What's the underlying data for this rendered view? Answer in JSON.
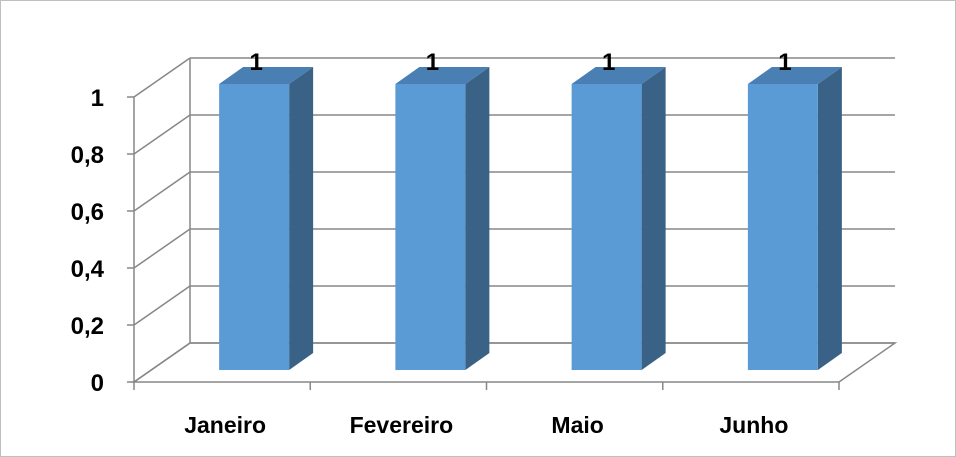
{
  "chart_data": {
    "type": "bar",
    "categories": [
      "Janeiro",
      "Fevereiro",
      "Maio",
      "Junho"
    ],
    "values": [
      1,
      1,
      1,
      1
    ],
    "data_labels": [
      "1",
      "1",
      "1",
      "1"
    ],
    "ylim": [
      0,
      1
    ],
    "y_ticks": [
      {
        "value": 0,
        "label": "0"
      },
      {
        "value": 0.2,
        "label": "0,2"
      },
      {
        "value": 0.4,
        "label": "0,4"
      },
      {
        "value": 0.6,
        "label": "0,6"
      },
      {
        "value": 0.8,
        "label": "0,8"
      },
      {
        "value": 1,
        "label": "1"
      }
    ],
    "grid": true,
    "style": "3d-clustered-column",
    "colors": {
      "bar_front": "#5b9bd5",
      "bar_side": "#3a6186",
      "bar_top": "#4a7fb4",
      "gridline": "#878787",
      "axis": "#878787"
    }
  }
}
